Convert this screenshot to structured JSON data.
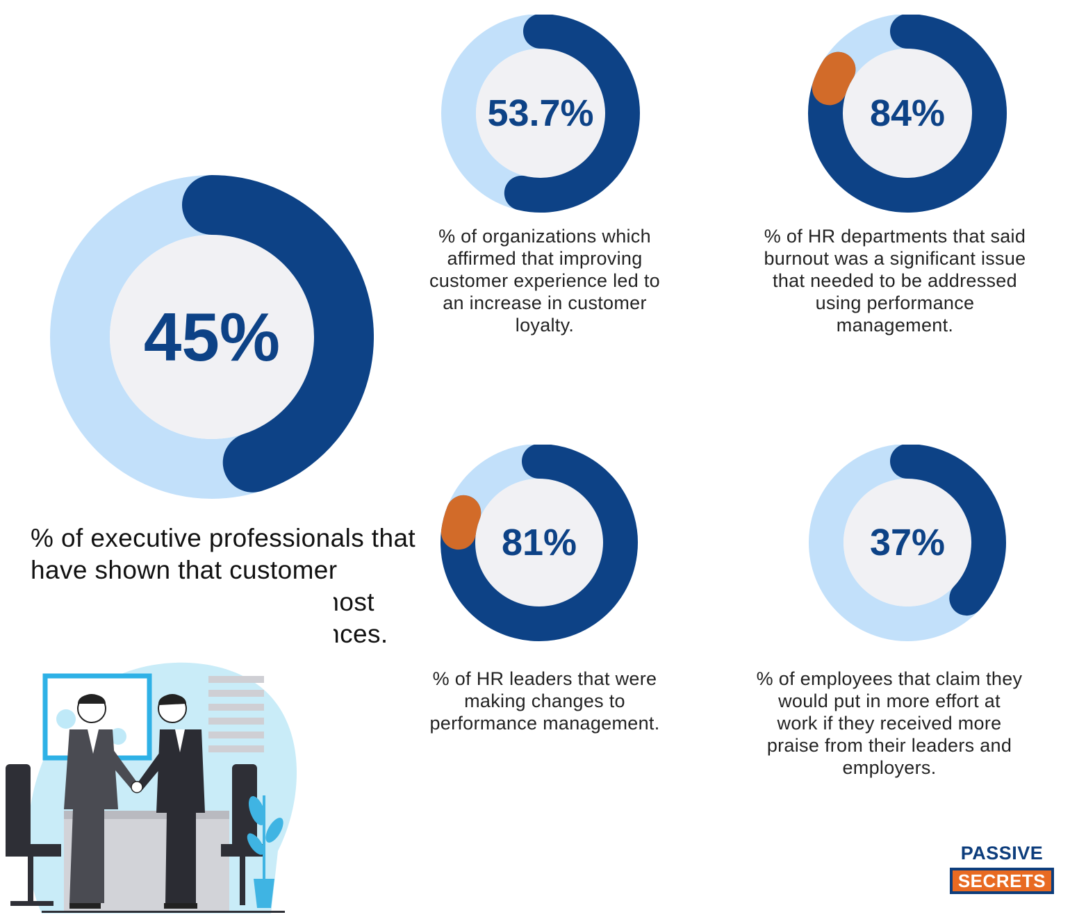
{
  "chart_data": [
    {
      "type": "pie",
      "value": 45,
      "label": "45%",
      "caption": "% of executive professionals that have shown that customer experience is one of the most critical strategic performances."
    },
    {
      "type": "pie",
      "value": 53.7,
      "label": "53.7%",
      "caption": "% of organizations which affirmed that improving customer experience led to an increase in customer loyalty."
    },
    {
      "type": "pie",
      "value": 84,
      "label": "84%",
      "caption": "% of HR departments that said burnout was a significant issue that needed to be addressed using performance management."
    },
    {
      "type": "pie",
      "value": 81,
      "label": "81%",
      "caption": "% of HR leaders that were making changes to performance management."
    },
    {
      "type": "pie",
      "value": 37,
      "label": "37%",
      "caption": "% of employees that claim they would put in more effort at work if they received more praise from their leaders and employers."
    }
  ],
  "colors": {
    "track": "#c2e0fa",
    "arc": "#0d4286",
    "hole": "#f1f1f4",
    "accent": "#e8701f",
    "text": "#0d4286"
  },
  "logo": {
    "line1": "PASSIVE",
    "line2": "SECRETS"
  },
  "illustration": "business-handshake-illustration"
}
